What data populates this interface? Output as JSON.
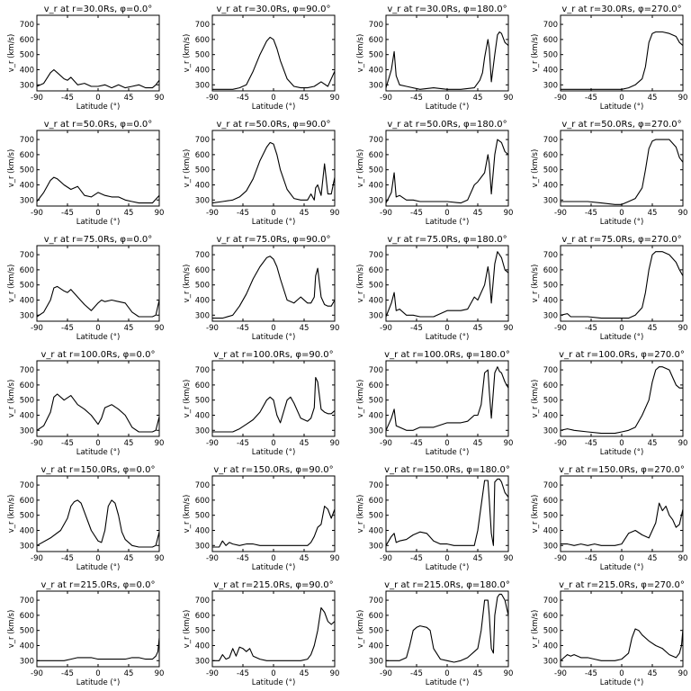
{
  "chart_data": {
    "type": "line",
    "layout": "6x4 grid",
    "xlabel": "Latitude (°)",
    "ylabel": "v_r (km/s)",
    "xlim": [
      -90,
      90
    ],
    "ylim": [
      260,
      760
    ],
    "xticks": [
      -90,
      -45,
      0,
      45,
      90
    ],
    "yticks": [
      300,
      400,
      500,
      600,
      700
    ],
    "grid": false,
    "panels": [
      {
        "title": "v_r at r=30.0Rs, φ=0.0°",
        "x": [
          -90,
          -80,
          -70,
          -65,
          -60,
          -50,
          -45,
          -40,
          -30,
          -20,
          -10,
          0,
          10,
          20,
          30,
          40,
          50,
          60,
          70,
          80,
          85,
          90
        ],
        "y": [
          290,
          310,
          380,
          400,
          380,
          340,
          330,
          350,
          300,
          310,
          290,
          290,
          300,
          280,
          300,
          280,
          290,
          300,
          280,
          280,
          300,
          330
        ]
      },
      {
        "title": "v_r at r=30.0Rs, φ=90.0°",
        "x": [
          -90,
          -75,
          -60,
          -50,
          -40,
          -30,
          -20,
          -10,
          -5,
          0,
          5,
          10,
          20,
          30,
          40,
          50,
          60,
          70,
          80,
          90
        ],
        "y": [
          270,
          270,
          270,
          280,
          300,
          390,
          500,
          590,
          615,
          600,
          540,
          460,
          340,
          290,
          280,
          280,
          290,
          320,
          290,
          390
        ]
      },
      {
        "title": "v_r at r=30.0Rs, φ=180.0°",
        "x": [
          -90,
          -82,
          -78,
          -75,
          -70,
          -60,
          -40,
          -20,
          0,
          20,
          40,
          48,
          52,
          55,
          60,
          62,
          65,
          70,
          74,
          77,
          80,
          85,
          90
        ],
        "y": [
          280,
          400,
          520,
          360,
          300,
          290,
          270,
          280,
          270,
          270,
          280,
          330,
          380,
          480,
          600,
          540,
          320,
          500,
          630,
          650,
          640,
          580,
          560
        ]
      },
      {
        "title": "v_r at r=30.0Rs, φ=270.0°",
        "x": [
          -90,
          -70,
          -50,
          -30,
          -10,
          0,
          10,
          20,
          30,
          35,
          40,
          45,
          50,
          60,
          70,
          80,
          85,
          90
        ],
        "y": [
          270,
          270,
          270,
          270,
          270,
          270,
          280,
          300,
          340,
          420,
          580,
          640,
          650,
          650,
          640,
          620,
          580,
          560
        ]
      },
      {
        "title": "v_r at r=50.0Rs, φ=0.0°",
        "x": [
          -90,
          -80,
          -70,
          -65,
          -60,
          -50,
          -40,
          -30,
          -20,
          -10,
          0,
          10,
          20,
          30,
          40,
          50,
          60,
          70,
          80,
          90
        ],
        "y": [
          290,
          350,
          430,
          450,
          440,
          400,
          370,
          390,
          330,
          320,
          350,
          330,
          320,
          320,
          300,
          290,
          280,
          280,
          280,
          330
        ]
      },
      {
        "title": "v_r at r=50.0Rs, φ=90.0°",
        "x": [
          -90,
          -75,
          -60,
          -50,
          -40,
          -30,
          -20,
          -10,
          -5,
          0,
          5,
          10,
          20,
          30,
          40,
          50,
          55,
          60,
          62,
          65,
          70,
          75,
          80,
          85,
          90
        ],
        "y": [
          280,
          290,
          300,
          320,
          360,
          440,
          560,
          650,
          680,
          670,
          600,
          500,
          370,
          310,
          300,
          300,
          340,
          300,
          380,
          400,
          330,
          540,
          340,
          340,
          450
        ]
      },
      {
        "title": "v_r at r=50.0Rs, φ=180.0°",
        "x": [
          -90,
          -82,
          -78,
          -75,
          -70,
          -60,
          -50,
          -40,
          -20,
          0,
          20,
          30,
          40,
          45,
          55,
          60,
          62,
          65,
          70,
          74,
          77,
          80,
          85,
          90
        ],
        "y": [
          280,
          350,
          480,
          320,
          330,
          300,
          300,
          290,
          290,
          290,
          280,
          300,
          400,
          420,
          480,
          600,
          540,
          340,
          600,
          700,
          690,
          680,
          620,
          600
        ]
      },
      {
        "title": "v_r at r=50.0Rs, φ=270.0°",
        "x": [
          -90,
          -70,
          -50,
          -30,
          -10,
          0,
          10,
          20,
          30,
          35,
          40,
          45,
          50,
          60,
          70,
          80,
          85,
          90
        ],
        "y": [
          290,
          290,
          290,
          280,
          270,
          270,
          290,
          310,
          380,
          500,
          640,
          690,
          700,
          700,
          700,
          650,
          580,
          550
        ]
      },
      {
        "title": "v_r at r=75.0Rs, φ=0.0°",
        "x": [
          -90,
          -80,
          -70,
          -65,
          -60,
          -50,
          -45,
          -40,
          -30,
          -20,
          -10,
          0,
          5,
          10,
          20,
          30,
          40,
          50,
          60,
          70,
          80,
          85,
          90
        ],
        "y": [
          290,
          320,
          400,
          480,
          490,
          460,
          450,
          470,
          420,
          370,
          330,
          380,
          400,
          390,
          400,
          390,
          380,
          320,
          290,
          290,
          290,
          300,
          400
        ]
      },
      {
        "title": "v_r at r=75.0Rs, φ=90.0°",
        "x": [
          -90,
          -75,
          -60,
          -50,
          -40,
          -30,
          -20,
          -10,
          -5,
          0,
          5,
          10,
          20,
          30,
          40,
          50,
          55,
          60,
          62,
          65,
          70,
          75,
          80,
          85,
          90
        ],
        "y": [
          280,
          280,
          300,
          360,
          440,
          540,
          620,
          680,
          690,
          670,
          620,
          540,
          400,
          380,
          420,
          380,
          380,
          420,
          560,
          610,
          420,
          370,
          360,
          360,
          400
        ]
      },
      {
        "title": "v_r at r=75.0Rs, φ=180.0°",
        "x": [
          -90,
          -82,
          -78,
          -75,
          -70,
          -60,
          -50,
          -40,
          -20,
          0,
          20,
          30,
          40,
          45,
          55,
          60,
          62,
          65,
          70,
          74,
          77,
          80,
          85,
          90
        ],
        "y": [
          290,
          380,
          450,
          330,
          340,
          300,
          300,
          290,
          290,
          330,
          330,
          340,
          420,
          400,
          500,
          620,
          560,
          380,
          640,
          720,
          700,
          680,
          600,
          580
        ]
      },
      {
        "title": "v_r at r=75.0Rs, φ=270.0°",
        "x": [
          -90,
          -80,
          -75,
          -70,
          -50,
          -30,
          -10,
          0,
          10,
          20,
          30,
          35,
          40,
          45,
          50,
          60,
          70,
          80,
          85,
          90
        ],
        "y": [
          300,
          310,
          290,
          290,
          290,
          280,
          280,
          280,
          280,
          300,
          350,
          450,
          600,
          700,
          720,
          720,
          700,
          650,
          600,
          560
        ]
      },
      {
        "title": "v_r at r=100.0Rs, φ=0.0°",
        "x": [
          -90,
          -80,
          -70,
          -65,
          -60,
          -50,
          -40,
          -30,
          -20,
          -10,
          0,
          5,
          10,
          20,
          30,
          40,
          50,
          60,
          70,
          80,
          85,
          90
        ],
        "y": [
          300,
          330,
          420,
          520,
          540,
          500,
          530,
          470,
          440,
          400,
          340,
          380,
          450,
          470,
          440,
          400,
          320,
          290,
          290,
          290,
          300,
          390
        ]
      },
      {
        "title": "v_r at r=100.0Rs, φ=90.0°",
        "x": [
          -90,
          -75,
          -60,
          -50,
          -40,
          -30,
          -20,
          -10,
          -5,
          0,
          5,
          10,
          20,
          25,
          30,
          40,
          50,
          55,
          60,
          62,
          65,
          70,
          75,
          80,
          85,
          90
        ],
        "y": [
          290,
          290,
          290,
          310,
          340,
          370,
          420,
          500,
          520,
          500,
          400,
          350,
          500,
          520,
          480,
          380,
          360,
          380,
          450,
          650,
          620,
          440,
          420,
          410,
          410,
          430
        ]
      },
      {
        "title": "v_r at r=100.0Rs, φ=180.0°",
        "x": [
          -90,
          -82,
          -78,
          -75,
          -70,
          -60,
          -50,
          -40,
          -20,
          0,
          20,
          30,
          40,
          45,
          50,
          55,
          60,
          62,
          65,
          70,
          74,
          77,
          80,
          85,
          90
        ],
        "y": [
          300,
          380,
          440,
          330,
          320,
          300,
          300,
          320,
          320,
          350,
          350,
          360,
          400,
          400,
          470,
          680,
          700,
          560,
          380,
          680,
          720,
          690,
          680,
          620,
          580
        ]
      },
      {
        "title": "v_r at r=100.0Rs, φ=270.0°",
        "x": [
          -90,
          -80,
          -70,
          -50,
          -30,
          -10,
          0,
          10,
          20,
          30,
          40,
          45,
          50,
          55,
          60,
          70,
          80,
          85,
          90
        ],
        "y": [
          300,
          310,
          300,
          290,
          280,
          280,
          290,
          300,
          320,
          400,
          500,
          620,
          700,
          720,
          720,
          700,
          600,
          580,
          580
        ]
      },
      {
        "title": "v_r at r=150.0Rs, φ=0.0°",
        "x": [
          -90,
          -70,
          -55,
          -45,
          -40,
          -35,
          -30,
          -25,
          -20,
          -10,
          0,
          5,
          10,
          15,
          20,
          25,
          30,
          35,
          40,
          50,
          60,
          70,
          80,
          85,
          90
        ],
        "y": [
          300,
          350,
          400,
          480,
          560,
          590,
          600,
          580,
          520,
          400,
          330,
          320,
          400,
          560,
          600,
          580,
          500,
          390,
          340,
          300,
          290,
          290,
          290,
          300,
          390
        ]
      },
      {
        "title": "v_r at r=150.0Rs, φ=90.0°",
        "x": [
          -90,
          -80,
          -75,
          -70,
          -65,
          -60,
          -50,
          -40,
          -30,
          -20,
          -10,
          0,
          10,
          20,
          30,
          40,
          50,
          55,
          60,
          65,
          70,
          75,
          80,
          85,
          90
        ],
        "y": [
          290,
          290,
          330,
          300,
          320,
          310,
          300,
          310,
          310,
          300,
          300,
          300,
          300,
          300,
          300,
          300,
          300,
          320,
          360,
          420,
          440,
          560,
          540,
          480,
          540
        ]
      },
      {
        "title": "v_r at r=150.0Rs, φ=180.0°",
        "x": [
          -90,
          -82,
          -78,
          -75,
          -70,
          -60,
          -50,
          -40,
          -30,
          -20,
          -10,
          0,
          10,
          20,
          30,
          40,
          45,
          55,
          60,
          62,
          65,
          68,
          70,
          74,
          77,
          80,
          85,
          90
        ],
        "y": [
          300,
          360,
          380,
          320,
          330,
          340,
          370,
          390,
          380,
          330,
          310,
          310,
          300,
          300,
          300,
          300,
          400,
          730,
          730,
          600,
          380,
          300,
          720,
          740,
          740,
          720,
          650,
          620
        ]
      },
      {
        "title": "v_r at r=150.0Rs, φ=270.0°",
        "x": [
          -90,
          -80,
          -70,
          -60,
          -50,
          -40,
          -30,
          -20,
          -10,
          0,
          10,
          20,
          30,
          40,
          45,
          50,
          55,
          60,
          65,
          70,
          75,
          80,
          85,
          90
        ],
        "y": [
          310,
          310,
          300,
          310,
          300,
          310,
          300,
          300,
          300,
          310,
          380,
          400,
          370,
          350,
          400,
          450,
          580,
          530,
          560,
          500,
          470,
          420,
          440,
          540
        ]
      },
      {
        "title": "v_r at r=215.0Rs, φ=0.0°",
        "x": [
          -90,
          -80,
          -70,
          -60,
          -50,
          -40,
          -30,
          -20,
          -10,
          0,
          10,
          20,
          30,
          40,
          50,
          60,
          70,
          80,
          85,
          88,
          90
        ],
        "y": [
          300,
          300,
          300,
          300,
          300,
          310,
          320,
          320,
          320,
          310,
          310,
          310,
          310,
          310,
          320,
          320,
          310,
          310,
          330,
          360,
          450
        ]
      },
      {
        "title": "v_r at r=215.0Rs, φ=90.0°",
        "x": [
          -90,
          -80,
          -75,
          -70,
          -65,
          -60,
          -55,
          -50,
          -45,
          -40,
          -35,
          -30,
          -20,
          -10,
          0,
          10,
          20,
          30,
          40,
          50,
          55,
          60,
          65,
          70,
          75,
          80,
          85,
          90
        ],
        "y": [
          300,
          300,
          340,
          310,
          320,
          380,
          330,
          390,
          380,
          360,
          380,
          330,
          310,
          300,
          300,
          300,
          300,
          300,
          300,
          310,
          340,
          400,
          500,
          650,
          620,
          560,
          540,
          560
        ]
      },
      {
        "title": "v_r at r=215.0Rs, φ=180.0°",
        "x": [
          -90,
          -80,
          -70,
          -60,
          -55,
          -50,
          -45,
          -40,
          -30,
          -25,
          -20,
          -10,
          0,
          10,
          20,
          30,
          40,
          45,
          50,
          55,
          60,
          62,
          65,
          68,
          70,
          74,
          77,
          80,
          85,
          90
        ],
        "y": [
          300,
          300,
          300,
          320,
          400,
          500,
          520,
          530,
          520,
          500,
          380,
          310,
          300,
          290,
          300,
          320,
          360,
          380,
          500,
          700,
          700,
          600,
          380,
          350,
          600,
          720,
          740,
          740,
          700,
          600
        ]
      },
      {
        "title": "v_r at r=215.0Rs, φ=270.0°",
        "x": [
          -90,
          -85,
          -80,
          -75,
          -70,
          -60,
          -50,
          -40,
          -30,
          -20,
          -10,
          0,
          10,
          15,
          20,
          25,
          30,
          40,
          50,
          60,
          70,
          80,
          85,
          88,
          90
        ],
        "y": [
          300,
          320,
          340,
          330,
          340,
          320,
          320,
          310,
          300,
          300,
          300,
          310,
          350,
          450,
          510,
          500,
          470,
          430,
          400,
          380,
          340,
          320,
          350,
          400,
          510
        ]
      }
    ]
  }
}
